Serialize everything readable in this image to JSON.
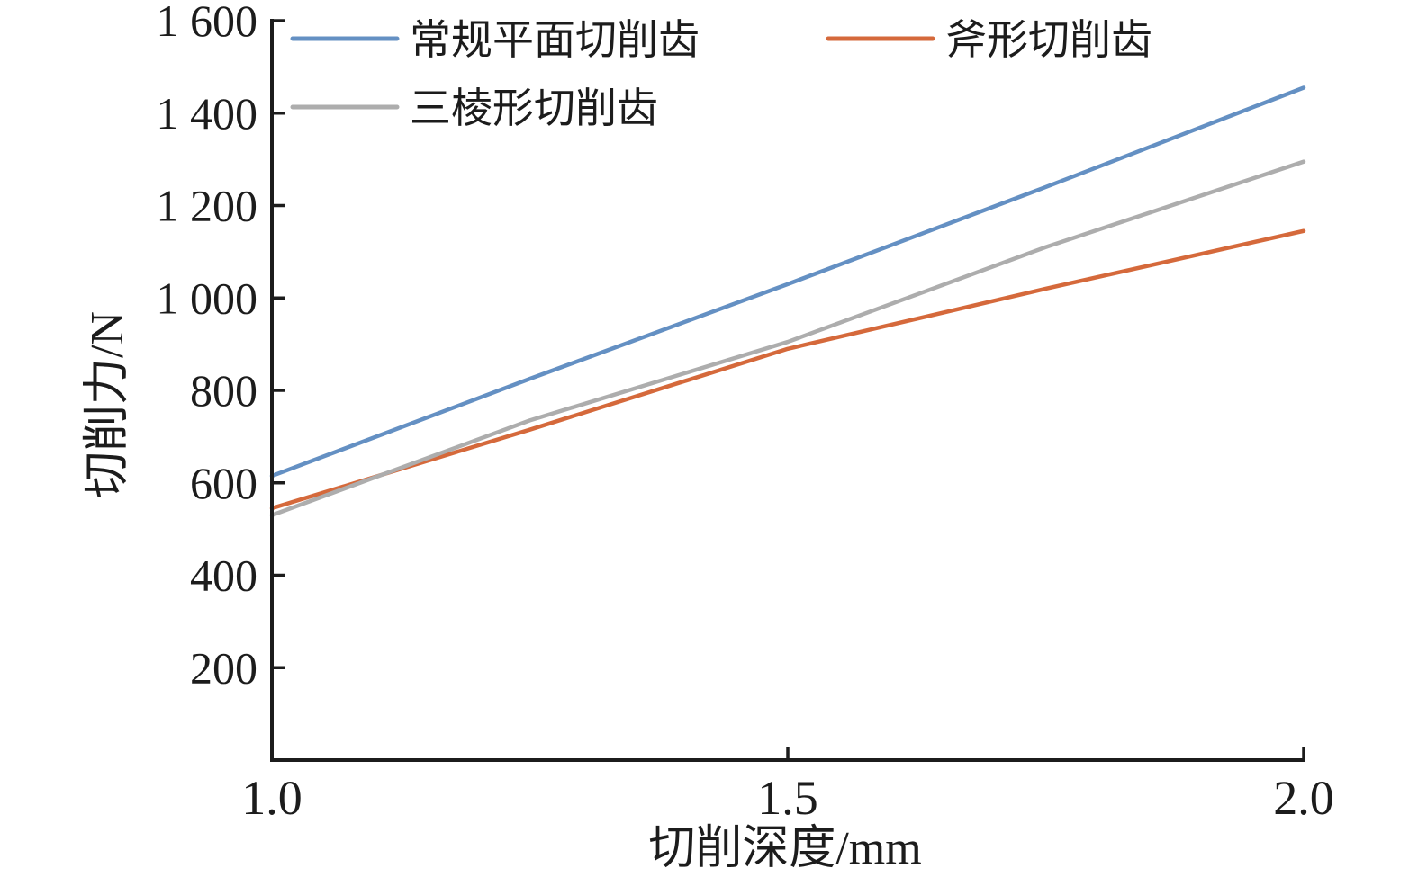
{
  "figure": {
    "background": "#ffffff",
    "axis_color": "#1c1c1c",
    "text_color": "#1c1c1c"
  },
  "chart_data": {
    "type": "line",
    "title": "",
    "xlabel": "切削深度/mm",
    "ylabel": "切削力/N",
    "xlim": [
      1.0,
      2.0
    ],
    "ylim": [
      0,
      1600
    ],
    "grid": false,
    "legend_position": "inside-top-left",
    "x": [
      1.0,
      1.25,
      1.5,
      1.75,
      2.0
    ],
    "series": [
      {
        "name": "常规平面切削齿",
        "color": "#6490C3",
        "values": [
          615,
          825,
          1030,
          1240,
          1455
        ]
      },
      {
        "name": "斧形切削齿",
        "color": "#D5693B",
        "values": [
          545,
          715,
          890,
          1020,
          1145
        ]
      },
      {
        "name": "三棱形切削齿",
        "color": "#ADADAD",
        "values": [
          530,
          735,
          905,
          1110,
          1295
        ]
      }
    ],
    "x_ticks": [
      1.0,
      1.5,
      2.0
    ],
    "x_tick_labels": [
      "1.0",
      "1.5",
      "2.0"
    ],
    "y_ticks": [
      200,
      400,
      600,
      800,
      1000,
      1200,
      1400,
      1600
    ],
    "y_tick_labels": [
      "200",
      "400",
      "600",
      "800",
      "1 000",
      "1 200",
      "1 400",
      "1 600"
    ],
    "legend_rows": [
      [
        0,
        1
      ],
      [
        2
      ]
    ]
  }
}
